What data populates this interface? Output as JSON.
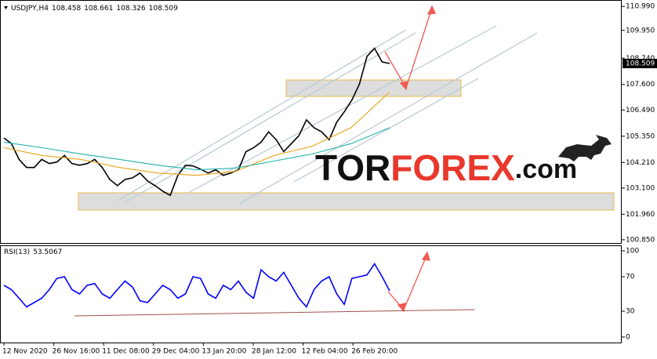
{
  "chart_data": [
    {
      "type": "line",
      "title": "USDJPY,H4",
      "ohlc": [
        108.458,
        108.661,
        108.326,
        108.509
      ],
      "ylim": [
        100.71,
        111.27
      ],
      "yticks": [
        {
          "value": 110.99,
          "label": "110.990"
        },
        {
          "value": 109.95,
          "label": "109.950"
        },
        {
          "value": 108.74,
          "label": "108.740"
        },
        {
          "value": 107.6,
          "label": "107.600"
        },
        {
          "value": 106.49,
          "label": "106.490"
        },
        {
          "value": 105.35,
          "label": "105.350"
        },
        {
          "value": 104.21,
          "label": "104.210"
        },
        {
          "value": 103.1,
          "label": "103.100"
        },
        {
          "value": 101.96,
          "label": "101.960"
        },
        {
          "value": 100.85,
          "label": "100.850"
        }
      ],
      "last_price": {
        "value": 108.509,
        "label": "108.509"
      },
      "x_labels": [
        "12 Nov 2020",
        "26 Nov 16:00",
        "11 Dec 08:00",
        "29 Dec 04:00",
        "13 Jan 20:00",
        "28 Jan 12:00",
        "12 Feb 04:00",
        "26 Feb 20:00"
      ],
      "watermark": [
        "TOR",
        "FOREX",
        ".com"
      ],
      "series": [
        {
          "color": "#000000",
          "values": [
            105.27,
            105.03,
            104.34,
            103.99,
            103.99,
            104.34,
            104.16,
            104.23,
            104.51,
            104.16,
            104.09,
            104.16,
            104.34,
            103.99,
            103.47,
            103.2,
            103.47,
            103.54,
            103.75,
            103.4,
            103.2,
            102.96,
            102.78,
            103.65,
            104.09,
            104.06,
            103.92,
            103.75,
            103.89,
            103.65,
            103.75,
            103.89,
            104.68,
            104.85,
            105.09,
            105.54,
            105.2,
            104.68,
            105.03,
            105.37,
            106.06,
            105.72,
            105.54,
            105.2,
            105.96,
            106.41,
            106.92,
            107.61,
            108.82,
            109.17,
            108.58,
            108.51
          ]
        },
        {
          "color": "#e8a317",
          "values": [
            104.85,
            104.51,
            104.34,
            103.99,
            103.75,
            103.65,
            103.82,
            104.51,
            104.92,
            105.72,
            107.27
          ]
        },
        {
          "color": "#20b2aa",
          "values": [
            105.09,
            104.85,
            104.58,
            104.34,
            104.09,
            103.89,
            103.96,
            104.27,
            104.58,
            105.03,
            105.72
          ]
        }
      ]
    },
    {
      "type": "line",
      "title": "RSI(13)",
      "last_value": 53.5067,
      "ylim": [
        -6.4,
        106.4
      ],
      "yticks": [
        100,
        70,
        30,
        0
      ],
      "series": [
        {
          "color": "#0000ff",
          "values": [
            60,
            55,
            45,
            35,
            40,
            45,
            55,
            68,
            70,
            55,
            50,
            60,
            62,
            50,
            45,
            55,
            65,
            58,
            42,
            40,
            50,
            60,
            55,
            45,
            50,
            70,
            68,
            50,
            45,
            60,
            55,
            65,
            52,
            45,
            78,
            70,
            65,
            75,
            60,
            45,
            35,
            55,
            65,
            70,
            50,
            38,
            68,
            70,
            72,
            85,
            70,
            53.5067
          ]
        }
      ]
    }
  ]
}
